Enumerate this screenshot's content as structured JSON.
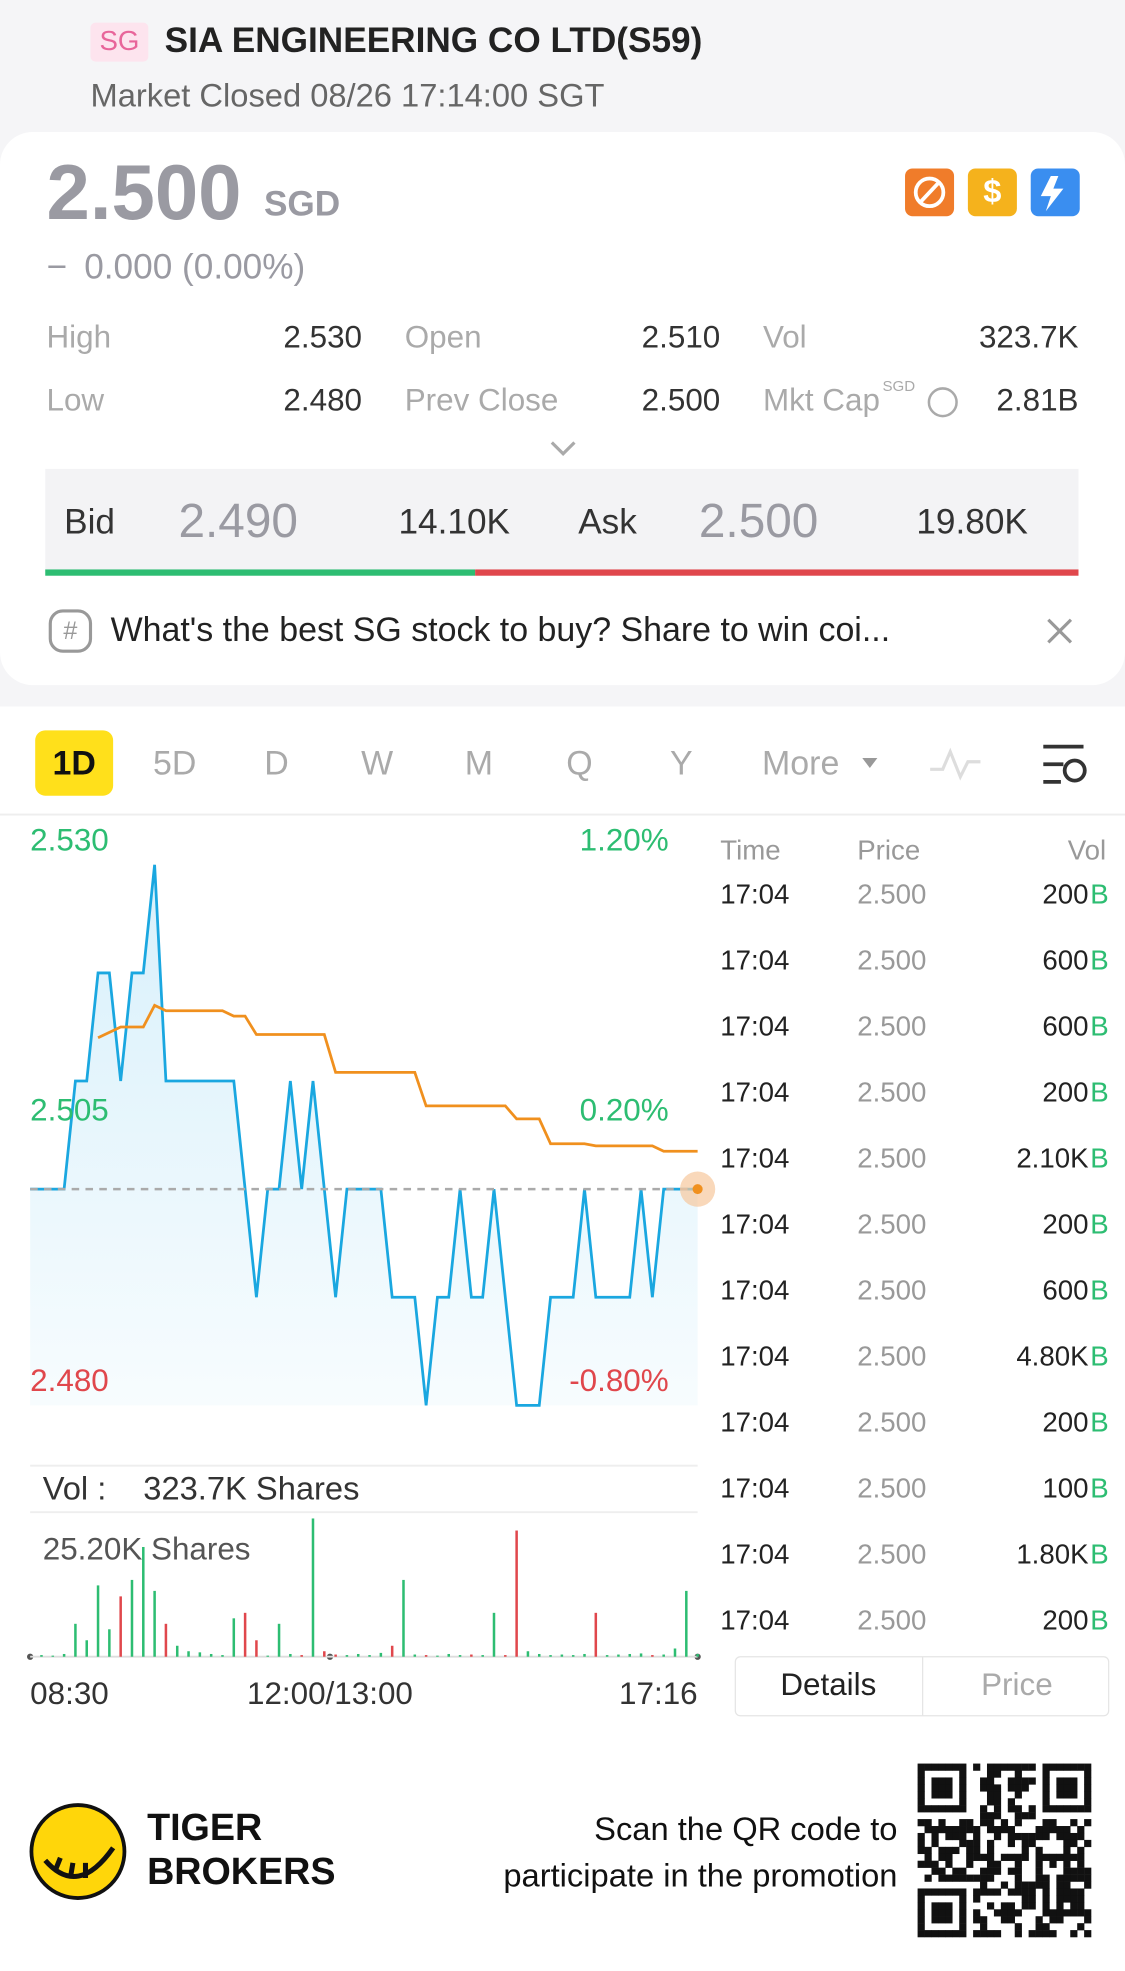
{
  "header": {
    "badge": "SG",
    "title": "SIA ENGINEERING CO LTD(S59)",
    "status": "Market Closed 08/26 17:14:00 SGT"
  },
  "quote": {
    "price": "2.500",
    "currency": "SGD",
    "change_sign": "−",
    "change": "0.000 (0.00%)"
  },
  "stats": [
    [
      {
        "label": "High",
        "value": "2.530"
      },
      {
        "label": "Open",
        "value": "2.510"
      },
      {
        "label": "Vol",
        "value": "323.7K"
      }
    ],
    [
      {
        "label": "Low",
        "value": "2.480"
      },
      {
        "label": "Prev Close",
        "value": "2.500"
      },
      {
        "label": "Mkt Cap",
        "sup": "SGD",
        "value": "2.81B"
      }
    ]
  ],
  "bid_ask": {
    "bid_label": "Bid",
    "bid": "2.490",
    "bid_size": "14.10K",
    "ask_label": "Ask",
    "ask": "2.500",
    "ask_size": "19.80K"
  },
  "banner": "What's the best SG stock to buy? Share to win coi...",
  "tabs": [
    "1D",
    "5D",
    "D",
    "W",
    "M",
    "Q",
    "Y",
    "More"
  ],
  "chart_data": {
    "type": "line",
    "xlim": [
      0,
      59
    ],
    "xticks": [
      {
        "value": 0,
        "label": "08:30"
      },
      {
        "value": 26.5,
        "label": "12:00/13:00"
      },
      {
        "value": 59,
        "label": "17:16"
      }
    ],
    "ylim": [
      2.48,
      2.53
    ],
    "yticks": [
      {
        "value": 2.53,
        "label": "2.530"
      },
      {
        "value": 2.505,
        "label": "2.505"
      },
      {
        "value": 2.48,
        "label": "2.480"
      }
    ],
    "y2lim": [
      -0.8,
      1.2
    ],
    "y2ticks": [
      {
        "value": 1.2,
        "label": "1.20%"
      },
      {
        "value": 0.2,
        "label": "0.20%"
      },
      {
        "value": -0.8,
        "label": "-0.80%"
      }
    ],
    "reference_line": 2.5,
    "series": [
      {
        "name": "Price",
        "color": "#1aa7e0",
        "values": [
          2.5,
          2.5,
          2.5,
          2.5,
          2.51,
          2.51,
          2.52,
          2.52,
          2.51,
          2.52,
          2.52,
          2.53,
          2.51,
          2.51,
          2.51,
          2.51,
          2.51,
          2.51,
          2.51,
          2.5,
          2.49,
          2.5,
          2.5,
          2.51,
          2.5,
          2.51,
          2.5,
          2.49,
          2.5,
          2.5,
          2.5,
          2.5,
          2.49,
          2.49,
          2.49,
          2.48,
          2.49,
          2.49,
          2.5,
          2.49,
          2.49,
          2.5,
          2.49,
          2.48,
          2.48,
          2.48,
          2.49,
          2.49,
          2.49,
          2.5,
          2.49,
          2.49,
          2.49,
          2.49,
          2.5,
          2.49,
          2.5,
          2.5,
          2.5,
          2.5
        ]
      },
      {
        "name": "Avg",
        "color": "#f0901e",
        "values": [
          null,
          null,
          null,
          null,
          null,
          null,
          2.514,
          2.5145,
          2.515,
          2.515,
          2.515,
          2.517,
          2.5165,
          2.5165,
          2.5165,
          2.5165,
          2.5165,
          2.5165,
          2.516,
          2.516,
          2.5143,
          2.5143,
          2.5143,
          2.5143,
          2.5143,
          2.5143,
          2.5143,
          2.5108,
          2.5108,
          2.5108,
          2.5108,
          2.5108,
          2.5108,
          2.5108,
          2.5108,
          2.5077,
          2.5077,
          2.5077,
          2.5077,
          2.5077,
          2.5077,
          2.5077,
          2.5077,
          2.5065,
          2.5065,
          2.5065,
          2.5042,
          2.5042,
          2.5042,
          2.5042,
          2.504,
          2.504,
          2.504,
          2.504,
          2.504,
          2.504,
          2.5035,
          2.5035,
          2.5035,
          2.5035
        ]
      }
    ],
    "volume": {
      "label": "Vol :",
      "total": "323.7K Shares",
      "ylim": [
        0,
        25200
      ],
      "yticks": [
        {
          "value": 25200,
          "label": "25.20K Shares"
        }
      ],
      "up_color": "#2dbd72",
      "down_color": "#e0474c",
      "values": [
        0,
        300,
        200,
        500,
        6000,
        3000,
        13000,
        5000,
        11000,
        14000,
        20000,
        12000,
        6000,
        2000,
        1000,
        800,
        500,
        300,
        7000,
        8000,
        3000,
        200,
        6000,
        500,
        300,
        25200,
        1000,
        400,
        300,
        500,
        300,
        700,
        2000,
        14000,
        400,
        300,
        200,
        500,
        300,
        400,
        300,
        8000,
        300,
        23000,
        1000,
        500,
        300,
        400,
        300,
        500,
        8000,
        300,
        400,
        500,
        600,
        300,
        400,
        1500,
        12000,
        500
      ]
    }
  },
  "trades": {
    "headers": [
      "Time",
      "Price",
      "Vol"
    ],
    "flag": "B",
    "rows": [
      [
        "17:04",
        "2.500",
        "200"
      ],
      [
        "17:04",
        "2.500",
        "600"
      ],
      [
        "17:04",
        "2.500",
        "600"
      ],
      [
        "17:04",
        "2.500",
        "200"
      ],
      [
        "17:04",
        "2.500",
        "2.10K"
      ],
      [
        "17:04",
        "2.500",
        "200"
      ],
      [
        "17:04",
        "2.500",
        "600"
      ],
      [
        "17:04",
        "2.500",
        "4.80K"
      ],
      [
        "17:04",
        "2.500",
        "200"
      ],
      [
        "17:04",
        "2.500",
        "100"
      ],
      [
        "17:04",
        "2.500",
        "1.80K"
      ],
      [
        "17:04",
        "2.500",
        "200"
      ]
    ]
  },
  "detail_tabs": [
    "Details",
    "Price"
  ],
  "footer": {
    "brand": [
      "TIGER",
      "BROKERS"
    ],
    "promo": [
      "Scan the QR code to",
      "participate in the promotion"
    ]
  }
}
